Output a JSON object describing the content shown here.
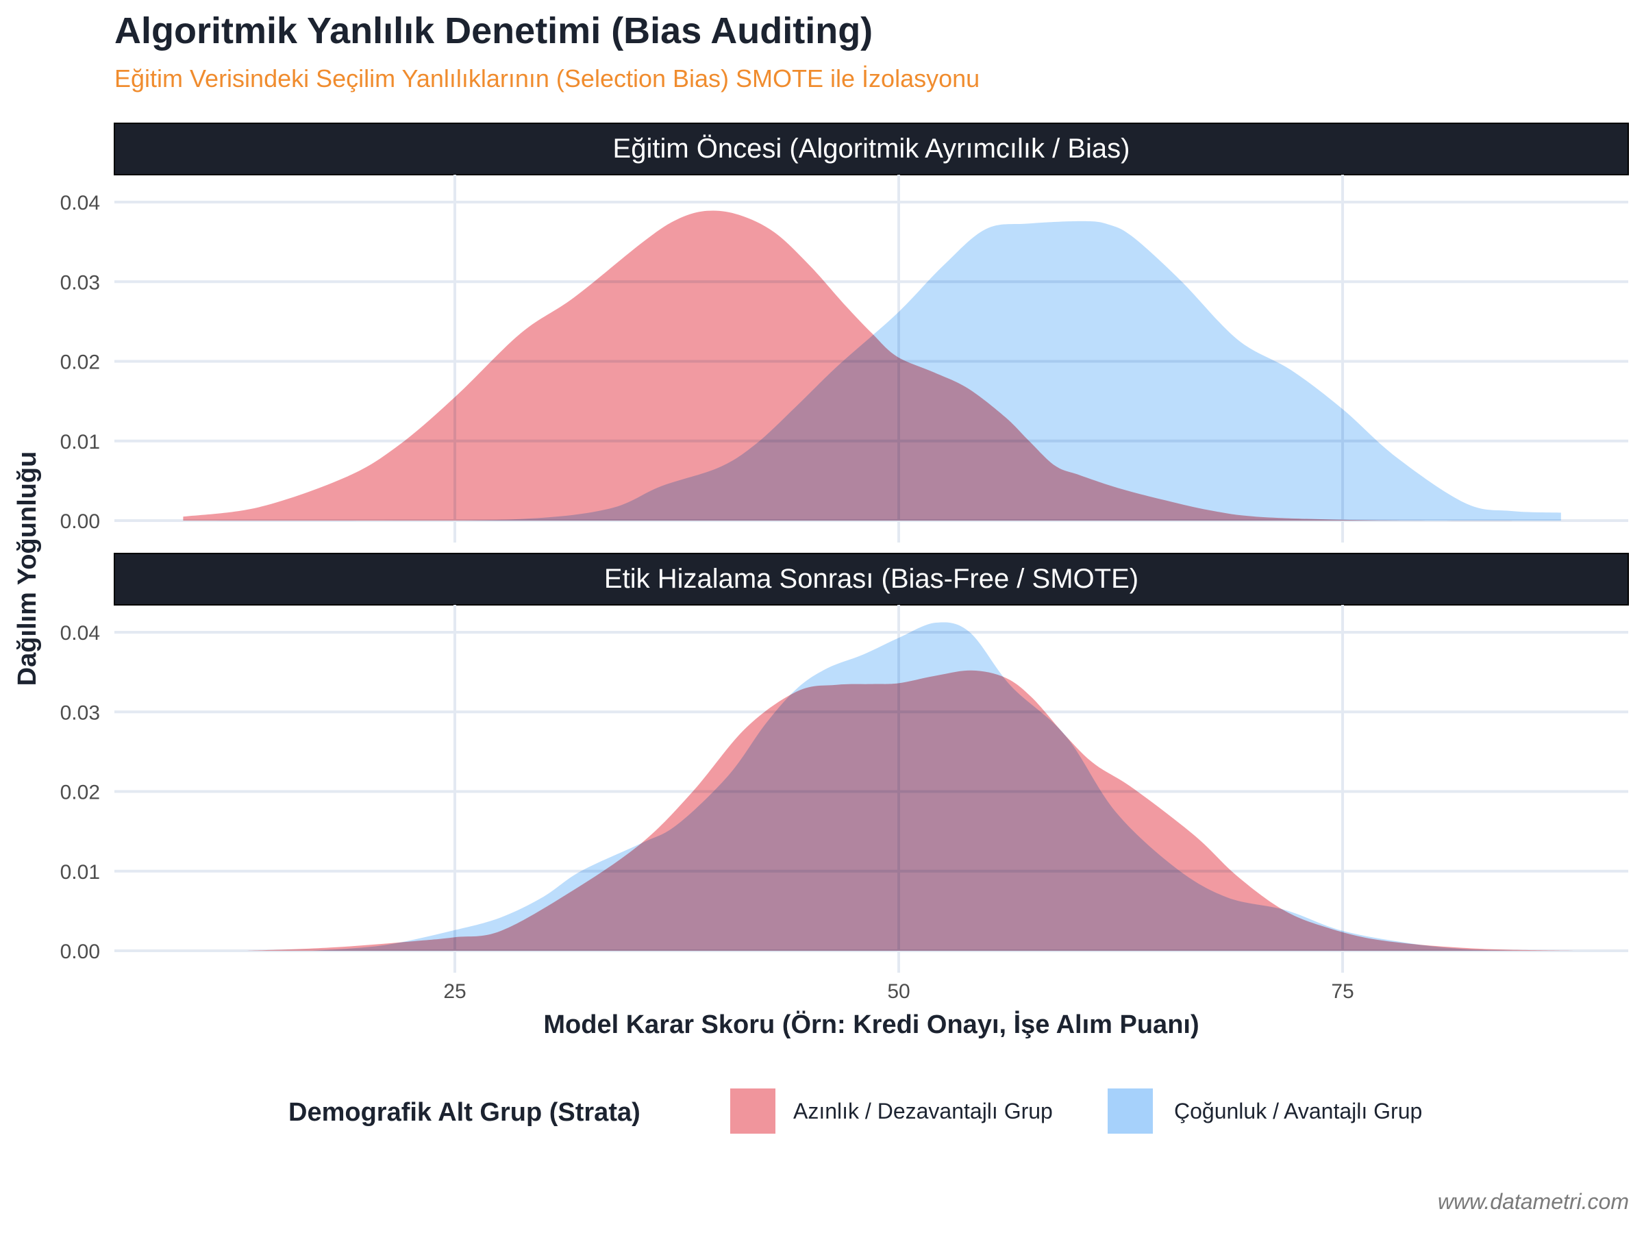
{
  "header": {
    "title": "Algoritmik Yanlılık Denetimi (Bias Auditing)",
    "subtitle": "Eğitim Verisindeki Seçilim Yanlılıklarının (Selection Bias) SMOTE ile İzolasyonu"
  },
  "caption": "www.datametri.com",
  "colors": {
    "minority": "#f0959c",
    "majority": "#a6d1fb",
    "overlap": "#a1a2d0",
    "strip_bg": "#1c212c",
    "grid": "#e3e9f2",
    "subtitle": "#f08c2e",
    "title": "#1c2330"
  },
  "chart_data": {
    "type": "area",
    "subtype": "density (faceted, overlapping, semi-transparent)",
    "title": "Algoritmik Yanlılık Denetimi (Bias Auditing)",
    "subtitle": "Eğitim Verisindeki Seçilim Yanlılıklarının (Selection Bias) SMOTE ile İzolasyonu",
    "xlabel": "Model Karar Skoru (Örn: Kredi Onayı, İşe Alım Puanı)",
    "ylabel": "Dağılım Yoğunluğu",
    "x_ticks": [
      25,
      50,
      75
    ],
    "y_ticks": [
      "0.00",
      "0.01",
      "0.02",
      "0.03",
      "0.04"
    ],
    "xlim": [
      5.8,
      91.1
    ],
    "ylim": [
      0,
      0.04
    ],
    "grid": true,
    "legend": {
      "title": "Demografik Alt Grup (Strata)",
      "position": "bottom",
      "entries": [
        "Azınlık / Dezavantajlı Grup",
        "Çoğunluk / Avantajlı Grup"
      ]
    },
    "panels": [
      {
        "strip": "Eğitim Öncesi (Algoritmik Ayrımcılık / Bias)",
        "series": [
          {
            "name": "Azınlık / Dezavantajlı Grup",
            "x": [
              9.7,
              14.0,
              18.9,
              21.8,
              25.0,
              28.7,
              31.7,
              35.6,
              37.5,
              39.2,
              41.0,
              43.0,
              45.0,
              47.0,
              48.5,
              49.9,
              52.0,
              53.9,
              56.0,
              57.3,
              58.8,
              60.2,
              62.5,
              65.1,
              67.5,
              70.1,
              75.0,
              80.0,
              87.3
            ],
            "y": [
              0.0005,
              0.0017,
              0.0055,
              0.0094,
              0.0155,
              0.0235,
              0.028,
              0.035,
              0.0378,
              0.0389,
              0.0384,
              0.0362,
              0.032,
              0.027,
              0.0235,
              0.0206,
              0.0186,
              0.0166,
              0.013,
              0.0101,
              0.0069,
              0.0057,
              0.004,
              0.0025,
              0.0013,
              0.0005,
              0.0001,
              0.0,
              0.0
            ]
          },
          {
            "name": "Çoğunluk / Avantajlı Grup",
            "x": [
              9.7,
              20.0,
              28.7,
              33.7,
              36.6,
              39.9,
              42.0,
              44.3,
              46.6,
              49.9,
              52.5,
              54.9,
              57.3,
              60.4,
              61.8,
              63.2,
              65.9,
              69.1,
              72.1,
              75.0,
              78.0,
              81.9,
              84.5,
              87.3
            ],
            "y": [
              0.0,
              0.0,
              0.0002,
              0.0015,
              0.0043,
              0.0067,
              0.0097,
              0.0145,
              0.0195,
              0.026,
              0.032,
              0.0366,
              0.0373,
              0.0376,
              0.0372,
              0.0356,
              0.0301,
              0.0227,
              0.0189,
              0.014,
              0.008,
              0.0022,
              0.0012,
              0.001
            ]
          }
        ]
      },
      {
        "strip": "Etik Hizalama Sonrası (Bias-Free / SMOTE)",
        "series": [
          {
            "name": "Azınlık / Dezavantajlı Grup",
            "x": [
              13.3,
              18.0,
              22.7,
              25.0,
              27.6,
              31.6,
              35.5,
              38.4,
              41.4,
              44.3,
              46.5,
              48.5,
              50.0,
              52.0,
              54.1,
              56.0,
              57.5,
              59.4,
              61.0,
              63.2,
              66.7,
              69.0,
              71.6,
              74.0,
              77.2,
              82.3,
              88.0
            ],
            "y": [
              0.0,
              0.0004,
              0.0012,
              0.0017,
              0.0025,
              0.0075,
              0.0135,
              0.02,
              0.028,
              0.0326,
              0.0334,
              0.0335,
              0.0336,
              0.0345,
              0.0352,
              0.0343,
              0.0318,
              0.027,
              0.0235,
              0.0204,
              0.0144,
              0.0095,
              0.0052,
              0.003,
              0.0013,
              0.0003,
              0.0
            ]
          },
          {
            "name": "Çoğunluk / Avantajlı Grup",
            "x": [
              17.0,
              21.0,
              25.0,
              27.6,
              30.0,
              32.1,
              35.5,
              37.5,
              40.4,
              42.5,
              44.3,
              46.0,
              48.0,
              50.0,
              52.1,
              54.0,
              56.3,
              59.4,
              62.2,
              65.6,
              68.5,
              71.8,
              75.0,
              78.9,
              82.0,
              85.0
            ],
            "y": [
              0.0,
              0.0007,
              0.0026,
              0.0042,
              0.0068,
              0.01,
              0.0135,
              0.0158,
              0.022,
              0.0285,
              0.033,
              0.0355,
              0.0372,
              0.0393,
              0.0412,
              0.04,
              0.0333,
              0.027,
              0.0175,
              0.0104,
              0.0067,
              0.0051,
              0.0025,
              0.0009,
              0.0002,
              0.0
            ]
          }
        ]
      }
    ]
  }
}
